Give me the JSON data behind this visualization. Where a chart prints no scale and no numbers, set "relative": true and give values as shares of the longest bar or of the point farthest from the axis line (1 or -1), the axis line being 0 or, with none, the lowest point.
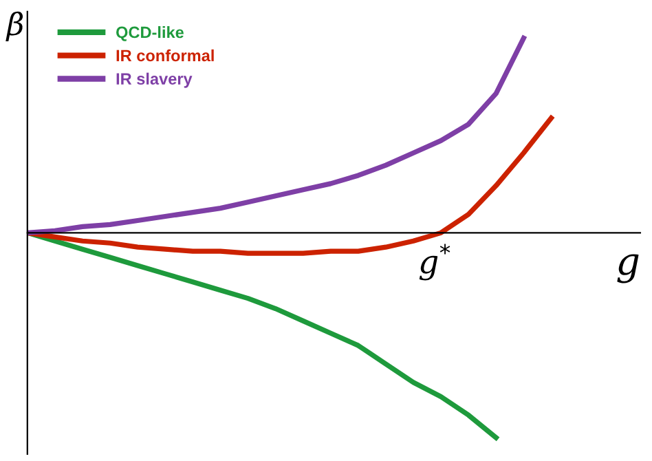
{
  "chart_data": {
    "type": "line",
    "relative": true,
    "xlabel": "g",
    "ylabel": "β",
    "categories": [
      null,
      null,
      null,
      null,
      null,
      null,
      null,
      null,
      null,
      null,
      null,
      null,
      null,
      null,
      null,
      null,
      null,
      null,
      null,
      null
    ],
    "series": [
      {
        "name": "QCD-like",
        "color": "#1e9a3c",
        "values": [
          0,
          -0.04,
          -0.08,
          -0.12,
          -0.16,
          -0.2,
          -0.24,
          -0.28,
          -0.32,
          -0.37,
          -0.43,
          -0.49,
          -0.55,
          -0.64,
          -0.73,
          -0.8,
          -0.89,
          -1,
          null,
          null
        ]
      },
      {
        "name": "IR conformal",
        "color": "#cc2200",
        "values": [
          0,
          -0.02,
          -0.04,
          -0.05,
          -0.07,
          -0.08,
          -0.09,
          -0.09,
          -0.1,
          -0.1,
          -0.1,
          -0.09,
          -0.09,
          -0.07,
          -0.04,
          0,
          0.09,
          0.23,
          0.39,
          0.56
        ]
      },
      {
        "name": "IR slavery",
        "color": "#7e3fa6",
        "values": [
          0,
          0.01,
          0.03,
          0.04,
          0.06,
          0.08,
          0.1,
          0.12,
          0.15,
          0.18,
          0.21,
          0.24,
          0.28,
          0.33,
          0.39,
          0.45,
          0.53,
          0.68,
          0.95,
          null
        ]
      }
    ],
    "annotations": [
      "g$^{*}$"
    ],
    "legend": "top left",
    "marker": "none",
    "line_style": "solid"
  }
}
